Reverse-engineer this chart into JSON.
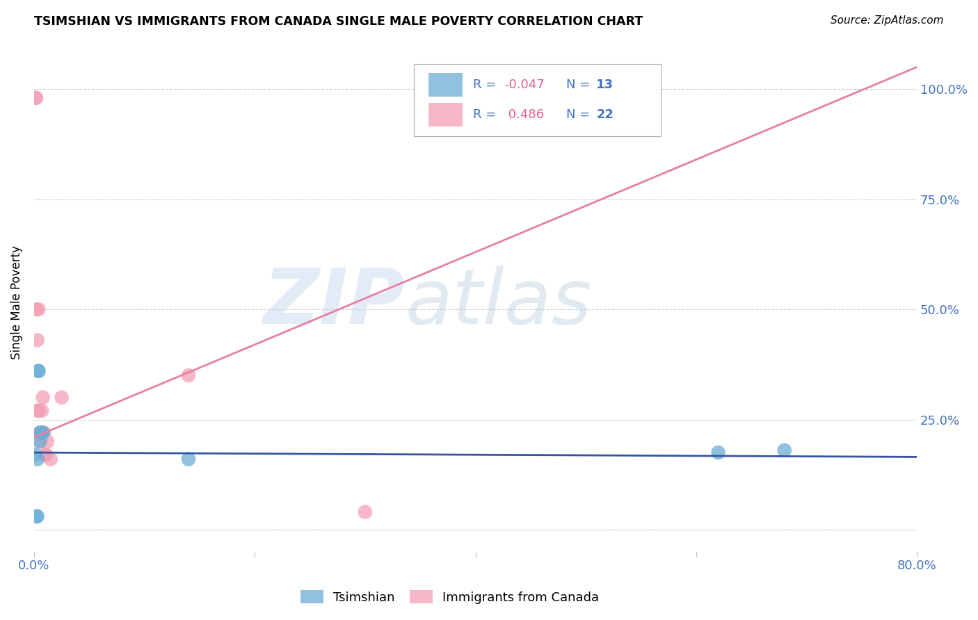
{
  "title": "TSIMSHIAN VS IMMIGRANTS FROM CANADA SINGLE MALE POVERTY CORRELATION CHART",
  "source": "Source: ZipAtlas.com",
  "ylabel": "Single Male Poverty",
  "xlim": [
    0.0,
    0.8
  ],
  "ylim": [
    -0.05,
    1.08
  ],
  "xticks": [
    0.0,
    0.2,
    0.4,
    0.6,
    0.8
  ],
  "xtick_labels": [
    "0.0%",
    "",
    "",
    "",
    "80.0%"
  ],
  "yticks": [
    0.0,
    0.25,
    0.5,
    0.75,
    1.0
  ],
  "ytick_labels": [
    "",
    "25.0%",
    "50.0%",
    "75.0%",
    "100.0%"
  ],
  "legend_label1": "Tsimshian",
  "legend_label2": "Immigrants from Canada",
  "R1": -0.047,
  "N1": 13,
  "R2": 0.486,
  "N2": 22,
  "color1": "#6baed6",
  "color2": "#f4a0b5",
  "trendline1_color": "#3555a0",
  "trendline2_color": "#e87fa0",
  "tsimshian_x": [
    0.001,
    0.002,
    0.003,
    0.003,
    0.004,
    0.004,
    0.005,
    0.006,
    0.007,
    0.008,
    0.14,
    0.62,
    0.68
  ],
  "tsimshian_y": [
    0.17,
    0.03,
    0.03,
    0.16,
    0.36,
    0.36,
    0.2,
    0.22,
    0.22,
    0.22,
    0.16,
    0.175,
    0.18
  ],
  "immigrants_x": [
    0.001,
    0.002,
    0.002,
    0.003,
    0.003,
    0.004,
    0.004,
    0.005,
    0.005,
    0.006,
    0.006,
    0.007,
    0.008,
    0.008,
    0.009,
    0.01,
    0.011,
    0.012,
    0.015,
    0.025,
    0.14,
    0.3
  ],
  "immigrants_y": [
    0.98,
    0.98,
    0.5,
    0.43,
    0.27,
    0.5,
    0.27,
    0.22,
    0.22,
    0.22,
    0.2,
    0.27,
    0.22,
    0.3,
    0.22,
    0.17,
    0.17,
    0.2,
    0.16,
    0.3,
    0.35,
    0.04
  ],
  "trendline_pink_x0": 0.0,
  "trendline_pink_y0": 0.21,
  "trendline_pink_x1": 0.8,
  "trendline_pink_y1": 1.05,
  "trendline_blue_x0": 0.0,
  "trendline_blue_y0": 0.175,
  "trendline_blue_x1": 0.8,
  "trendline_blue_y1": 0.165
}
